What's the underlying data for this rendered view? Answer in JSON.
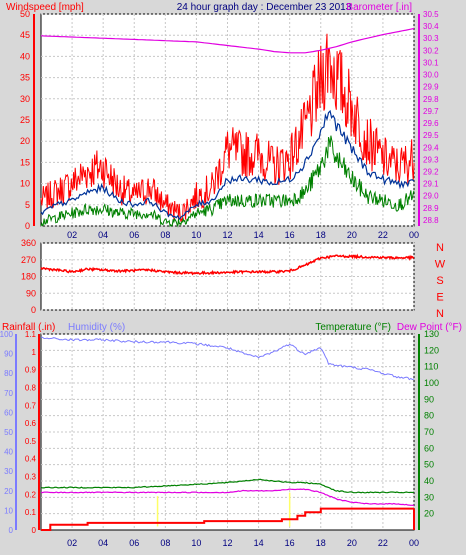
{
  "header": {
    "title": "24 hour graph day : December 23 2013",
    "left_label": "Windspeed [mph]",
    "right_label": "Barometer [.in]"
  },
  "colors": {
    "wind": "#ff0000",
    "wind_avg": "#003399",
    "gust_low": "#008000",
    "barometer": "#e000e0",
    "direction": "#ff0000",
    "humidity": "#7b7bff",
    "temperature": "#008000",
    "dewpoint": "#e000e0",
    "rain": "#ff0000",
    "solar": "#ffff66",
    "title": "#000080"
  },
  "chart_data": [
    {
      "type": "line",
      "name": "wind-barometer",
      "x_ticks": [
        "02",
        "04",
        "06",
        "08",
        "10",
        "12",
        "14",
        "16",
        "18",
        "20",
        "22",
        "00"
      ],
      "xlim_hours": [
        0,
        24
      ],
      "y_left": {
        "label": "Windspeed [mph]",
        "ylim": [
          0,
          50
        ],
        "ticks": [
          0,
          5,
          10,
          15,
          20,
          25,
          30,
          35,
          40,
          45,
          50
        ]
      },
      "y_right": {
        "label": "Barometer [.in]",
        "ylim": [
          28.75,
          30.5
        ],
        "ticks": [
          28.8,
          28.9,
          29,
          29.1,
          29.2,
          29.3,
          29.4,
          29.5,
          29.6,
          29.7,
          29.8,
          29.9,
          30,
          30.1,
          30.2,
          30.3,
          30.4,
          30.5
        ]
      },
      "grid": true,
      "series_wind_x": [
        0,
        1,
        2,
        3,
        4,
        5,
        6,
        7,
        8,
        9,
        10,
        11,
        12,
        13,
        14,
        15,
        16,
        17,
        18,
        18.5,
        19,
        20,
        21,
        22,
        23,
        24
      ],
      "series_wind_gust": [
        6,
        8,
        10,
        13,
        14,
        9,
        7,
        9,
        5,
        3,
        7,
        9,
        18,
        17,
        17,
        14,
        16,
        23,
        34,
        40,
        35,
        28,
        20,
        16,
        14,
        16
      ],
      "series_wind_avg": [
        3,
        5,
        6,
        8,
        9,
        6,
        5,
        6,
        3,
        2,
        5,
        6,
        11,
        11,
        11,
        10,
        11,
        15,
        22,
        27,
        24,
        18,
        13,
        11,
        10,
        10
      ],
      "series_wind_low": [
        1,
        2,
        3,
        4,
        4,
        3,
        3,
        3,
        1,
        1,
        3,
        4,
        6,
        6,
        6,
        6,
        6,
        8,
        14,
        19,
        16,
        11,
        7,
        6,
        5,
        7
      ],
      "series_baro_x": [
        0,
        2,
        4,
        6,
        8,
        10,
        12,
        14,
        15,
        16,
        17,
        18,
        19,
        20,
        22,
        24
      ],
      "series_baro": [
        30.32,
        30.31,
        30.3,
        30.29,
        30.28,
        30.27,
        30.24,
        30.21,
        30.19,
        30.18,
        30.18,
        30.2,
        30.23,
        30.27,
        30.33,
        30.38
      ]
    },
    {
      "type": "line",
      "name": "wind-direction",
      "ylim": [
        0,
        360
      ],
      "y_ticks": [
        0,
        90,
        180,
        270,
        360
      ],
      "compass_labels": [
        "N",
        "W",
        "S",
        "E",
        "N"
      ],
      "series_x": [
        0,
        1,
        2,
        3,
        4,
        5,
        6,
        7,
        8,
        9,
        10,
        11,
        12,
        13,
        14,
        15,
        16,
        17,
        18,
        19,
        20,
        21,
        22,
        23,
        24
      ],
      "series_dir": [
        225,
        215,
        205,
        220,
        215,
        210,
        212,
        215,
        205,
        200,
        198,
        200,
        202,
        205,
        205,
        205,
        210,
        240,
        280,
        290,
        288,
        285,
        282,
        280,
        282
      ]
    },
    {
      "type": "line",
      "name": "rain-humidity-temperature",
      "rain": {
        "label": "Rainfall (.in)",
        "ylim": [
          0,
          1.1
        ],
        "ticks": [
          0,
          0.1,
          0.2,
          0.3,
          0.4,
          0.5,
          0.6,
          0.7,
          0.8,
          0.9,
          1,
          1.1
        ]
      },
      "humidity": {
        "label": "Humidity (%)",
        "ylim": [
          0,
          100
        ],
        "ticks": [
          0,
          10,
          20,
          30,
          40,
          50,
          60,
          70,
          80,
          90,
          100
        ]
      },
      "temperature": {
        "label": "Temperature (°F)",
        "dewpoint_label": "Dew Point (°F)",
        "ylim": [
          10,
          130
        ],
        "ticks": [
          20,
          30,
          40,
          50,
          60,
          70,
          80,
          90,
          100,
          110,
          120,
          130
        ]
      },
      "series_x": [
        0,
        2,
        4,
        6,
        8,
        10,
        12,
        13,
        14,
        15,
        16,
        16.5,
        17,
        18,
        18.5,
        19,
        20,
        21,
        22,
        23,
        24
      ],
      "series_humidity": [
        98,
        97,
        97,
        96,
        96,
        95,
        93,
        90,
        88,
        91,
        95,
        92,
        90,
        93,
        85,
        84,
        83,
        82,
        80,
        78,
        77
      ],
      "series_temperature": [
        36,
        36,
        36,
        36,
        37,
        38,
        39,
        40,
        41,
        40,
        39,
        39,
        39,
        38,
        36,
        34,
        33,
        33,
        33,
        33,
        33
      ],
      "series_dewpoint": [
        33,
        33,
        33,
        33,
        33,
        33,
        33,
        34,
        34,
        34,
        35,
        35,
        35,
        33,
        31,
        29,
        27,
        26,
        26,
        26,
        25
      ],
      "series_rain_x": [
        0,
        0.6,
        0.6,
        3,
        3,
        10.5,
        10.5,
        15.5,
        15.5,
        16.5,
        16.5,
        17,
        17,
        18,
        18,
        24
      ],
      "series_rain": [
        0,
        0,
        0.03,
        0.03,
        0.04,
        0.04,
        0.05,
        0.05,
        0.06,
        0.06,
        0.08,
        0.08,
        0.1,
        0.1,
        0.12,
        0.12
      ]
    }
  ]
}
